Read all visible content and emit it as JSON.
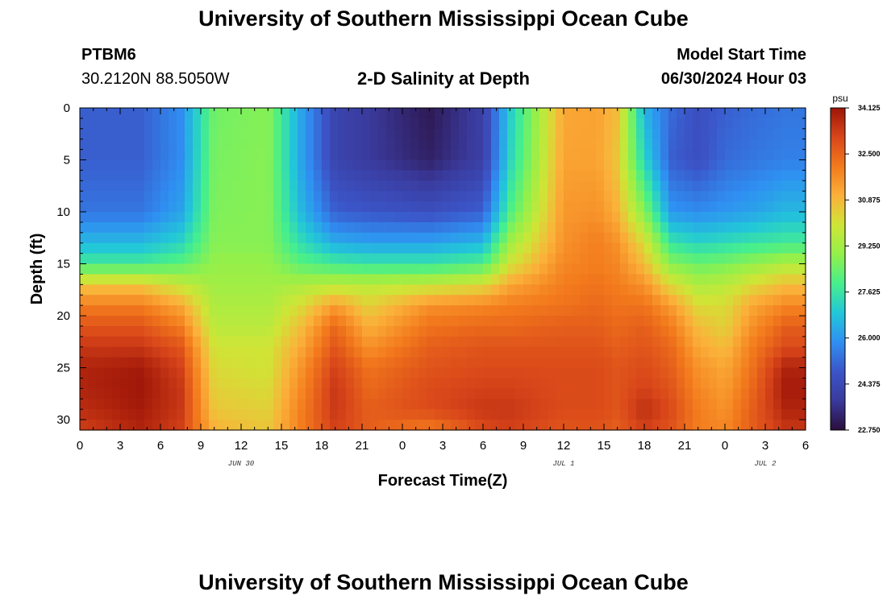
{
  "page": {
    "title": "University of Southern Mississippi Ocean Cube",
    "footer_title": "University of Southern Mississippi Ocean Cube"
  },
  "station": {
    "id": "PTBM6",
    "coords": "30.2120N  88.5050W"
  },
  "model": {
    "label": "Model Start Time",
    "start": "06/30/2024 Hour 03"
  },
  "chart_data": {
    "type": "heatmap",
    "title": "2-D Salinity at Depth",
    "xlabel": "Forecast Time(Z)",
    "ylabel": "Depth (ft)",
    "x_range_hours": [
      0,
      54
    ],
    "ylim": [
      0,
      31
    ],
    "y_inverted": true,
    "x_ticks": [
      "0",
      "3",
      "6",
      "9",
      "12",
      "15",
      "18",
      "21",
      "0",
      "3",
      "6",
      "9",
      "12",
      "15",
      "18",
      "21",
      "0",
      "3",
      "6"
    ],
    "x_tick_hours": [
      0,
      3,
      6,
      9,
      12,
      15,
      18,
      21,
      24,
      27,
      30,
      33,
      36,
      39,
      42,
      45,
      48,
      51,
      54
    ],
    "y_ticks": [
      "0",
      "5",
      "10",
      "15",
      "20",
      "25",
      "30"
    ],
    "y_tick_values": [
      0,
      5,
      10,
      15,
      20,
      25,
      30
    ],
    "date_labels": [
      {
        "text": "JUN 30",
        "hour": 12
      },
      {
        "text": "JUL 1",
        "hour": 36
      },
      {
        "text": "JUL 2",
        "hour": 51
      }
    ],
    "times_hours": [
      0,
      4.5,
      7.5,
      10,
      14,
      16.5,
      19,
      21.5,
      26,
      30,
      32,
      36,
      38.5,
      40,
      42,
      44,
      46,
      48,
      50,
      52.5,
      54
    ],
    "depths_ft": [
      0,
      5,
      10,
      13,
      15,
      17,
      19,
      21,
      23,
      25,
      27,
      29,
      31
    ],
    "salinity_psu": [
      [
        25.0,
        25.0,
        25.8,
        28.5,
        28.8,
        26.2,
        24.2,
        23.8,
        23.0,
        24.0,
        27.0,
        31.2,
        31.3,
        30.8,
        26.5,
        25.2,
        24.6,
        25.0,
        25.2,
        25.4,
        25.4
      ],
      [
        25.0,
        25.0,
        25.8,
        28.6,
        28.8,
        26.2,
        24.2,
        23.8,
        23.2,
        24.0,
        27.2,
        31.3,
        31.3,
        30.6,
        27.2,
        25.0,
        24.6,
        25.2,
        25.4,
        25.6,
        25.6
      ],
      [
        25.4,
        25.4,
        26.2,
        28.7,
        28.8,
        26.6,
        25.0,
        24.8,
        24.6,
        25.0,
        28.0,
        31.5,
        31.6,
        31.0,
        28.8,
        26.0,
        25.8,
        26.0,
        26.2,
        26.6,
        26.6
      ],
      [
        26.6,
        26.6,
        27.2,
        28.8,
        28.8,
        27.4,
        26.4,
        26.2,
        26.2,
        26.6,
        29.2,
        31.6,
        32.0,
        31.6,
        30.2,
        27.6,
        27.2,
        27.4,
        27.6,
        27.8,
        27.8
      ],
      [
        27.8,
        27.8,
        28.2,
        29.0,
        29.0,
        28.2,
        27.8,
        27.6,
        27.6,
        28.0,
        30.0,
        31.8,
        32.0,
        31.8,
        30.8,
        28.8,
        28.4,
        28.6,
        29.0,
        29.4,
        29.4
      ],
      [
        30.6,
        30.6,
        29.8,
        29.2,
        29.2,
        29.4,
        29.6,
        29.6,
        29.8,
        30.2,
        31.2,
        32.0,
        32.2,
        32.0,
        31.6,
        30.2,
        29.4,
        29.6,
        30.2,
        30.8,
        30.8
      ],
      [
        32.0,
        32.0,
        31.2,
        29.4,
        29.4,
        30.2,
        31.4,
        30.4,
        31.6,
        31.8,
        32.0,
        32.2,
        32.4,
        32.2,
        32.2,
        31.4,
        30.2,
        30.2,
        31.2,
        31.8,
        31.8
      ],
      [
        32.8,
        32.8,
        32.0,
        29.6,
        29.6,
        30.8,
        32.4,
        31.0,
        32.2,
        32.4,
        32.4,
        32.6,
        32.6,
        32.4,
        32.6,
        32.0,
        30.8,
        30.4,
        31.6,
        32.6,
        32.6
      ],
      [
        33.4,
        33.4,
        32.8,
        30.0,
        30.0,
        31.2,
        32.8,
        31.6,
        32.6,
        32.8,
        32.8,
        32.8,
        32.8,
        32.6,
        32.8,
        32.4,
        31.2,
        30.8,
        32.0,
        33.0,
        33.0
      ],
      [
        33.8,
        34.0,
        33.2,
        30.2,
        30.0,
        31.6,
        33.2,
        32.2,
        32.8,
        33.0,
        33.0,
        33.0,
        33.0,
        32.8,
        33.0,
        32.6,
        31.6,
        31.2,
        32.2,
        33.8,
        33.8
      ],
      [
        33.8,
        34.1,
        33.4,
        30.4,
        30.2,
        31.8,
        33.4,
        32.4,
        33.0,
        33.2,
        33.2,
        33.0,
        33.0,
        32.8,
        33.2,
        32.8,
        31.8,
        31.4,
        32.4,
        34.0,
        34.0
      ],
      [
        33.6,
        34.0,
        33.4,
        30.6,
        30.4,
        32.0,
        33.4,
        32.6,
        33.0,
        33.4,
        33.4,
        33.0,
        33.0,
        32.8,
        33.6,
        33.0,
        32.0,
        31.6,
        32.6,
        33.8,
        33.8
      ],
      [
        33.2,
        33.8,
        33.2,
        31.0,
        30.6,
        32.0,
        33.2,
        32.6,
        32.0,
        33.0,
        33.2,
        32.8,
        32.8,
        32.6,
        33.2,
        32.8,
        32.0,
        31.8,
        32.6,
        33.4,
        33.4
      ]
    ],
    "colorbar": {
      "unit": "psu",
      "min": 22.75,
      "max": 34.125,
      "labels": [
        "34.125",
        "32.500",
        "30.875",
        "29.250",
        "27.625",
        "26.000",
        "24.375",
        "22.750"
      ],
      "label_values": [
        34.125,
        32.5,
        30.875,
        29.25,
        27.625,
        26.0,
        24.375,
        22.75
      ]
    }
  },
  "colors": {
    "ramp": [
      "#2a0e3c",
      "#3a3a9c",
      "#3b55c8",
      "#2f8ff2",
      "#22c7d8",
      "#46ef8c",
      "#93f04a",
      "#cfe536",
      "#fbb13a",
      "#f37a1c",
      "#d8461a",
      "#9e1508"
    ]
  }
}
